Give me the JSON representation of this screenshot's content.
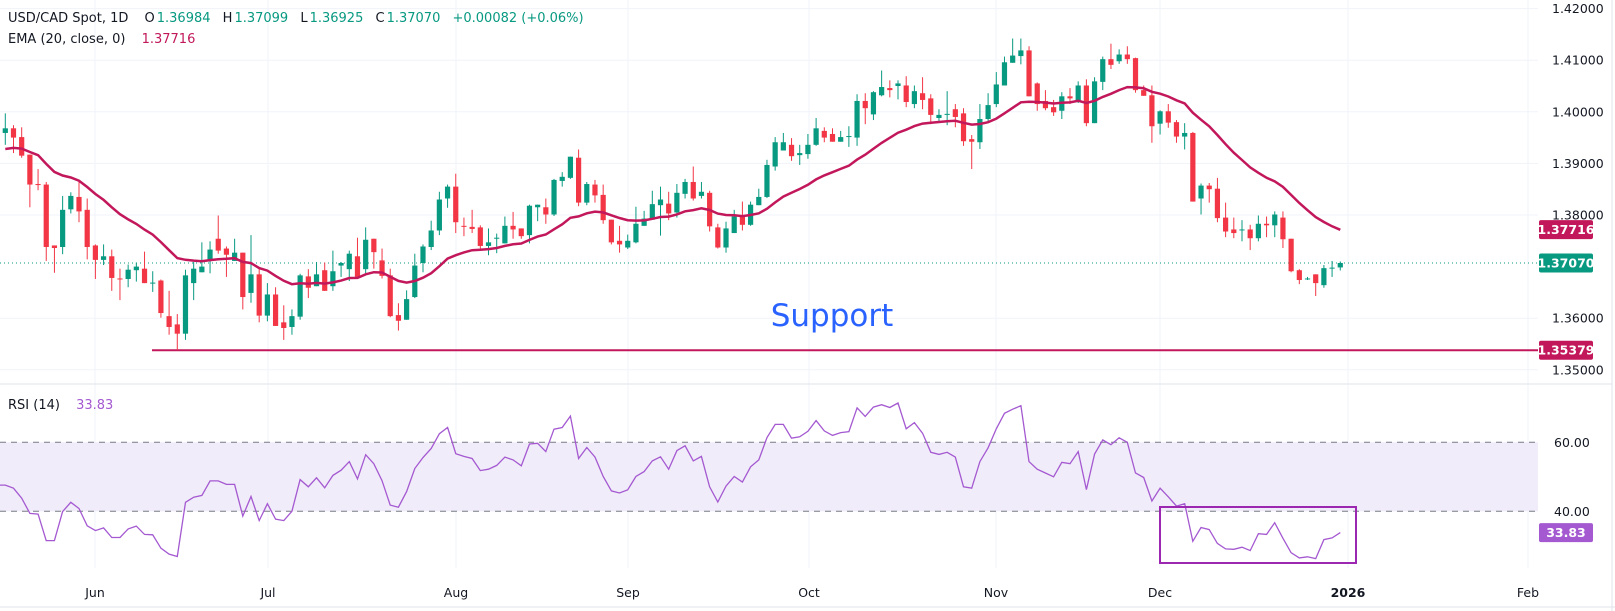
{
  "header": {
    "symbol": "USD/CAD Spot, 1D",
    "o_label": "O",
    "o": "1.36984",
    "h_label": "H",
    "h": "1.37099",
    "l_label": "L",
    "l": "1.36925",
    "c_label": "C",
    "c": "1.37070",
    "change": "+0.00082 (+0.06%)"
  },
  "ema_legend": {
    "label": "EMA (20, close, 0)",
    "value": "1.37716"
  },
  "rsi_legend": {
    "label": "RSI (14)",
    "value": "33.83"
  },
  "price_axis": {
    "ticks": [
      {
        "value": 1.42,
        "label": "1.42000"
      },
      {
        "value": 1.41,
        "label": "1.41000"
      },
      {
        "value": 1.4,
        "label": "1.40000"
      },
      {
        "value": 1.39,
        "label": "1.39000"
      },
      {
        "value": 1.38,
        "label": "1.38000"
      },
      {
        "value": 1.36,
        "label": "1.36000"
      },
      {
        "value": 1.35,
        "label": "1.35000"
      }
    ]
  },
  "price_tags": {
    "ema": {
      "value": 1.37716,
      "label": "1.37716"
    },
    "last": {
      "value": 1.3707,
      "label": "1.37070"
    },
    "support": {
      "value": 1.35379,
      "label": "1.35379"
    }
  },
  "rsi_axis": {
    "ticks": [
      {
        "value": 60,
        "label": "60.00"
      },
      {
        "value": 40,
        "label": "40.00"
      }
    ],
    "last": {
      "value": 33.83,
      "label": "33.83"
    }
  },
  "time_axis": {
    "labels": [
      "Jun",
      "Jul",
      "Aug",
      "Sep",
      "Oct",
      "Nov",
      "Dec",
      "2026",
      "Feb"
    ],
    "bold": "2026"
  },
  "annotation": {
    "text": "Support",
    "level": 1.35379
  },
  "colors": {
    "up": "#089981",
    "down": "#f23645",
    "ema": "#c2185b",
    "rsi": "#a459d1",
    "rsi_band": "#f1ecf9",
    "support_line": "#c2185b",
    "support_text": "#2962ff",
    "rsi_box": "#9c27b0"
  },
  "chart_data": {
    "type": "candlestick",
    "interval": "1D",
    "ylim": [
      1.345,
      1.42
    ],
    "rsi_ylim": [
      25,
      75
    ],
    "rsi_band": [
      40,
      60
    ],
    "ema_period": 20,
    "rsi_period": 14,
    "open": [
      1.3959,
      1.3968,
      1.3951,
      1.3917,
      1.386,
      1.3859,
      1.3741,
      1.3738,
      1.3811,
      1.3835,
      1.381,
      1.3741,
      1.3713,
      1.372,
      1.3677,
      1.3676,
      1.3693,
      1.3696,
      1.3668,
      1.3673,
      1.3604,
      1.3588,
      1.357,
      1.3668,
      1.3689,
      1.3713,
      1.3754,
      1.3735,
      1.3711,
      1.3727,
      1.3649,
      1.3685,
      1.3605,
      1.3646,
      1.3592,
      1.3583,
      1.3603,
      1.3681,
      1.3662,
      1.3693,
      1.3662,
      1.3702,
      1.3695,
      1.372,
      1.3695,
      1.3754,
      1.3712,
      1.3683,
      1.3606,
      1.3597,
      1.3641,
      1.3707,
      1.3738,
      1.377,
      1.3832,
      1.3855,
      1.3779,
      1.3777,
      1.3776,
      1.374,
      1.3755,
      1.3745,
      1.3779,
      1.3774,
      1.3761,
      1.3815,
      1.3815,
      1.3801,
      1.3866,
      1.3872,
      1.3911,
      1.3824,
      1.3859,
      1.3839,
      1.3791,
      1.375,
      1.3737,
      1.3747,
      1.3779,
      1.3791,
      1.3819,
      1.3822,
      1.3805,
      1.3841,
      1.3864,
      1.3837,
      1.3843,
      1.3776,
      1.3737,
      1.3765,
      1.3799,
      1.3781,
      1.3819,
      1.3835,
      1.3894,
      1.3925,
      1.3936,
      1.3916,
      1.3918,
      1.3936,
      1.3963,
      1.3957,
      1.3942,
      1.3952,
      1.395,
      1.4021,
      1.3995,
      1.4032,
      1.4046,
      1.405,
      1.4051,
      1.4015,
      1.4036,
      1.4026,
      1.3988,
      1.3995,
      1.4005,
      1.3997,
      1.3947,
      1.3941,
      1.3986,
      1.4015,
      1.4051,
      1.4095,
      1.4108,
      1.4119,
      1.4055,
      1.4021,
      1.4009,
      1.4002,
      1.403,
      1.4021,
      1.4051,
      1.3978,
      1.4058,
      1.4102,
      1.4098,
      1.4111,
      1.4104,
      1.4042,
      1.4032,
      1.3977,
      1.4001,
      1.398,
      1.3952,
      1.3959,
      1.3832,
      1.3857,
      1.3851,
      1.3795,
      1.3772,
      1.3771,
      1.3772,
      1.3755,
      1.3783,
      1.378,
      1.3795,
      1.3754,
      1.3693,
      1.3676,
      1.3685,
      1.3664,
      1.3697,
      1.36984
    ],
    "high": [
      1.3997,
      1.3974,
      1.397,
      1.3917,
      1.3889,
      1.3864,
      1.3741,
      1.3837,
      1.3844,
      1.3864,
      1.3832,
      1.3743,
      1.3743,
      1.3733,
      1.3696,
      1.3704,
      1.3708,
      1.3729,
      1.3691,
      1.3675,
      1.3653,
      1.3608,
      1.3694,
      1.3709,
      1.3747,
      1.3749,
      1.3799,
      1.3739,
      1.3754,
      1.3727,
      1.3761,
      1.3695,
      1.3668,
      1.366,
      1.3625,
      1.3617,
      1.3686,
      1.3695,
      1.3709,
      1.3708,
      1.3731,
      1.3709,
      1.3731,
      1.3756,
      1.3776,
      1.3754,
      1.3735,
      1.3696,
      1.3629,
      1.3654,
      1.3725,
      1.3743,
      1.3789,
      1.3845,
      1.3859,
      1.388,
      1.3795,
      1.381,
      1.378,
      1.3774,
      1.3764,
      1.3797,
      1.3806,
      1.3774,
      1.382,
      1.382,
      1.3832,
      1.387,
      1.3883,
      1.3913,
      1.3927,
      1.3864,
      1.3868,
      1.3859,
      1.3791,
      1.3779,
      1.3762,
      1.3816,
      1.3808,
      1.3847,
      1.3855,
      1.3845,
      1.386,
      1.387,
      1.3894,
      1.3864,
      1.3847,
      1.3783,
      1.3787,
      1.381,
      1.3826,
      1.3826,
      1.3851,
      1.3907,
      1.3951,
      1.3959,
      1.3949,
      1.3936,
      1.3957,
      1.3988,
      1.397,
      1.3968,
      1.3963,
      1.3972,
      1.4034,
      1.4036,
      1.404,
      1.408,
      1.4061,
      1.4061,
      1.4069,
      1.4051,
      1.4067,
      1.4034,
      1.4005,
      1.404,
      1.4015,
      1.4007,
      1.3955,
      1.4015,
      1.4036,
      1.4077,
      1.4107,
      1.4142,
      1.4142,
      1.4127,
      1.4057,
      1.4042,
      1.4023,
      1.4038,
      1.4046,
      1.4059,
      1.4063,
      1.4067,
      1.4107,
      1.4132,
      1.4121,
      1.4127,
      1.4105,
      1.4051,
      1.4051,
      1.4003,
      1.4015,
      1.3984,
      1.3978,
      1.3961,
      1.3861,
      1.3862,
      1.3872,
      1.3824,
      1.3795,
      1.379,
      1.3781,
      1.3799,
      1.3797,
      1.3807,
      1.3807,
      1.3754,
      1.3695,
      1.368,
      1.3685,
      1.3703,
      1.3711,
      1.37099
    ],
    "low": [
      1.3936,
      1.392,
      1.3911,
      1.3815,
      1.3848,
      1.3711,
      1.3688,
      1.3724,
      1.3803,
      1.3786,
      1.3714,
      1.3676,
      1.3703,
      1.3653,
      1.3635,
      1.366,
      1.3671,
      1.3668,
      1.3651,
      1.3601,
      1.3568,
      1.3538,
      1.3558,
      1.3635,
      1.3689,
      1.3687,
      1.3725,
      1.368,
      1.3711,
      1.3617,
      1.363,
      1.3592,
      1.3594,
      1.3585,
      1.3558,
      1.3568,
      1.3597,
      1.3639,
      1.3662,
      1.3653,
      1.3653,
      1.368,
      1.3672,
      1.368,
      1.3687,
      1.3696,
      1.3677,
      1.3602,
      1.3576,
      1.3597,
      1.3639,
      1.3689,
      1.3732,
      1.3761,
      1.3814,
      1.3765,
      1.3759,
      1.3765,
      1.3734,
      1.3722,
      1.3726,
      1.3745,
      1.3754,
      1.3754,
      1.3745,
      1.3788,
      1.3783,
      1.3798,
      1.3855,
      1.387,
      1.3817,
      1.3819,
      1.3824,
      1.3783,
      1.3743,
      1.3727,
      1.3734,
      1.3745,
      1.3779,
      1.3791,
      1.376,
      1.379,
      1.3795,
      1.3832,
      1.3828,
      1.3832,
      1.3768,
      1.3735,
      1.3727,
      1.3765,
      1.377,
      1.3779,
      1.3819,
      1.3833,
      1.3886,
      1.3925,
      1.3905,
      1.3897,
      1.3909,
      1.3934,
      1.3941,
      1.3942,
      1.3942,
      1.3932,
      1.3934,
      1.3976,
      1.3984,
      1.403,
      1.4028,
      1.4024,
      1.4009,
      1.4007,
      1.4005,
      1.3976,
      1.3979,
      1.3974,
      1.397,
      1.3934,
      1.3889,
      1.3928,
      1.3982,
      1.4009,
      1.4051,
      1.4095,
      1.4092,
      1.403,
      1.4002,
      1.4003,
      1.3992,
      1.3986,
      1.4015,
      1.4017,
      1.3972,
      1.3978,
      1.4042,
      1.4083,
      1.4093,
      1.4093,
      1.4037,
      1.4031,
      1.394,
      1.3956,
      1.3969,
      1.394,
      1.3927,
      1.3826,
      1.3801,
      1.3824,
      1.3786,
      1.3757,
      1.3755,
      1.3749,
      1.3732,
      1.3749,
      1.3757,
      1.3757,
      1.3736,
      1.3689,
      1.3666,
      1.3674,
      1.3643,
      1.3659,
      1.368,
      1.36925
    ],
    "close": [
      1.3968,
      1.395,
      1.3915,
      1.3859,
      1.3858,
      1.3738,
      1.3736,
      1.381,
      1.3837,
      1.3807,
      1.3738,
      1.3713,
      1.372,
      1.3678,
      1.3676,
      1.3694,
      1.37,
      1.3668,
      1.3669,
      1.361,
      1.3583,
      1.357,
      1.3683,
      1.3696,
      1.37,
      1.3733,
      1.3731,
      1.3723,
      1.3727,
      1.3641,
      1.3685,
      1.3605,
      1.3646,
      1.3585,
      1.3581,
      1.3604,
      1.3683,
      1.3659,
      1.3685,
      1.3653,
      1.3691,
      1.3707,
      1.3725,
      1.368,
      1.3752,
      1.3728,
      1.3682,
      1.3604,
      1.3595,
      1.3637,
      1.3702,
      1.3739,
      1.377,
      1.383,
      1.3855,
      1.3786,
      1.3778,
      1.3773,
      1.374,
      1.3747,
      1.3756,
      1.3779,
      1.3772,
      1.3759,
      1.3818,
      1.382,
      1.3801,
      1.3868,
      1.3874,
      1.3913,
      1.3824,
      1.386,
      1.3838,
      1.379,
      1.3747,
      1.3743,
      1.375,
      1.3783,
      1.3793,
      1.3821,
      1.383,
      1.3803,
      1.3843,
      1.3864,
      1.3832,
      1.3845,
      1.3778,
      1.3737,
      1.3774,
      1.3797,
      1.3781,
      1.382,
      1.3835,
      1.3897,
      1.3941,
      1.3941,
      1.3914,
      1.392,
      1.3936,
      1.3968,
      1.395,
      1.3942,
      1.3951,
      1.3953,
      1.4021,
      1.4007,
      1.4038,
      1.4048,
      1.4042,
      1.4055,
      1.4019,
      1.404,
      1.4023,
      1.3994,
      1.3994,
      1.3996,
      1.399,
      1.3943,
      1.3942,
      1.3986,
      1.4013,
      1.4053,
      1.4096,
      1.4109,
      1.4119,
      1.403,
      1.4015,
      1.4007,
      1.3999,
      1.403,
      1.4026,
      1.4051,
      1.3978,
      1.4059,
      1.4102,
      1.4091,
      1.4111,
      1.4102,
      1.4042,
      1.4031,
      1.3972,
      1.4001,
      1.3979,
      1.3952,
      1.3959,
      1.3826,
      1.3857,
      1.385,
      1.3794,
      1.3768,
      1.3765,
      1.3772,
      1.3755,
      1.3783,
      1.378,
      1.3801,
      1.3753,
      1.3691,
      1.3674,
      1.3677,
      1.3668,
      1.3697,
      1.3698,
      1.3707
    ],
    "rsi": [
      47.6,
      46.7,
      43.8,
      39.4,
      39.2,
      31.5,
      31.5,
      39.9,
      42.6,
      40.8,
      35.8,
      34.4,
      35.2,
      32.4,
      32.4,
      34.9,
      35.7,
      33.3,
      33.2,
      29.3,
      27.6,
      26.9,
      42.6,
      44.1,
      44.6,
      48.8,
      48.8,
      47.8,
      47.8,
      38.6,
      44.3,
      37.3,
      42.2,
      37.7,
      37.3,
      40.0,
      49.2,
      47.1,
      49.7,
      46.8,
      50.4,
      51.9,
      54.4,
      49.4,
      56.4,
      53.8,
      48.9,
      41.8,
      41.2,
      45.7,
      52.4,
      55.6,
      58.2,
      62.5,
      64.3,
      56.7,
      55.9,
      55.3,
      51.8,
      52.2,
      53.3,
      55.7,
      54.9,
      53.2,
      59.5,
      59.7,
      57.3,
      63.8,
      64.3,
      67.6,
      55.3,
      58.5,
      55.7,
      50.1,
      45.9,
      45.3,
      46.2,
      50.1,
      51.5,
      54.6,
      55.8,
      52.2,
      57.6,
      59.0,
      54.6,
      55.9,
      47.1,
      42.7,
      47.3,
      50.1,
      48.5,
      52.9,
      54.9,
      61.4,
      65.2,
      65.2,
      61.2,
      61.6,
      63.2,
      66.3,
      63.3,
      62.0,
      62.8,
      63.1,
      70.0,
      67.5,
      70.2,
      70.9,
      70.1,
      71.4,
      63.9,
      65.7,
      62.6,
      57.1,
      56.5,
      57.1,
      55.7,
      47.1,
      46.7,
      54.4,
      58.4,
      63.9,
      68.4,
      69.6,
      70.6,
      54.4,
      52.2,
      51.1,
      50.0,
      54.2,
      53.8,
      57.3,
      46.3,
      56.6,
      60.7,
      59.3,
      61.3,
      60.0,
      51.1,
      49.8,
      43.0,
      46.7,
      44.2,
      41.5,
      42.2,
      31.3,
      35.3,
      34.7,
      30.7,
      29.1,
      29.0,
      29.6,
      28.6,
      33.5,
      33.3,
      36.7,
      32.2,
      28.0,
      26.5,
      26.8,
      26.3,
      31.8,
      32.3,
      33.83
    ]
  }
}
